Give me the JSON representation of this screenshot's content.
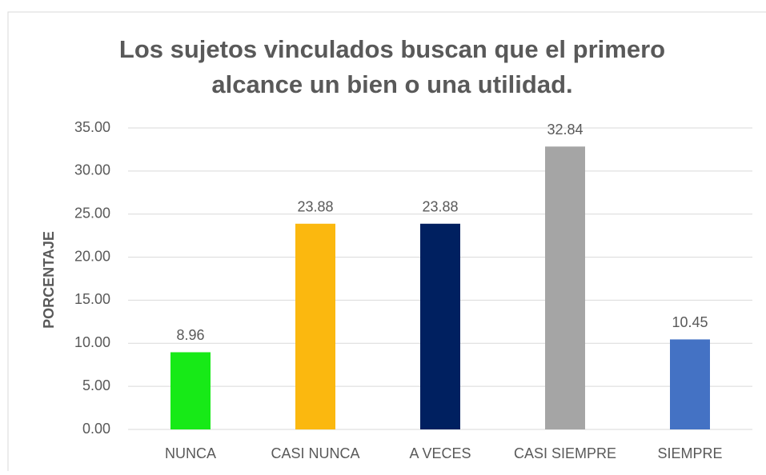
{
  "chart_data": {
    "type": "bar",
    "title": [
      "Los sujetos vinculados buscan que el primero",
      "alcance un bien o una utilidad."
    ],
    "y_label": "PORCENTAJE",
    "categories": [
      "NUNCA",
      "CASI NUNCA",
      "A VECES",
      "CASI SIEMPRE",
      "SIEMPRE"
    ],
    "values": [
      8.96,
      23.88,
      23.88,
      32.84,
      10.45
    ],
    "colors": [
      "#17ea17",
      "#fbb80f",
      "#002060",
      "#a5a5a5",
      "#4472c4"
    ],
    "ylim": [
      0,
      35
    ],
    "yticks": [
      {
        "value": 0,
        "label": "0.00"
      },
      {
        "value": 5,
        "label": "5.00"
      },
      {
        "value": 10,
        "label": "10.00"
      },
      {
        "value": 15,
        "label": "15.00"
      },
      {
        "value": 20,
        "label": "20.00"
      },
      {
        "value": 25,
        "label": "25.00"
      },
      {
        "value": 30,
        "label": "30.00"
      },
      {
        "value": 35,
        "label": "35.00"
      }
    ],
    "grid": true
  }
}
